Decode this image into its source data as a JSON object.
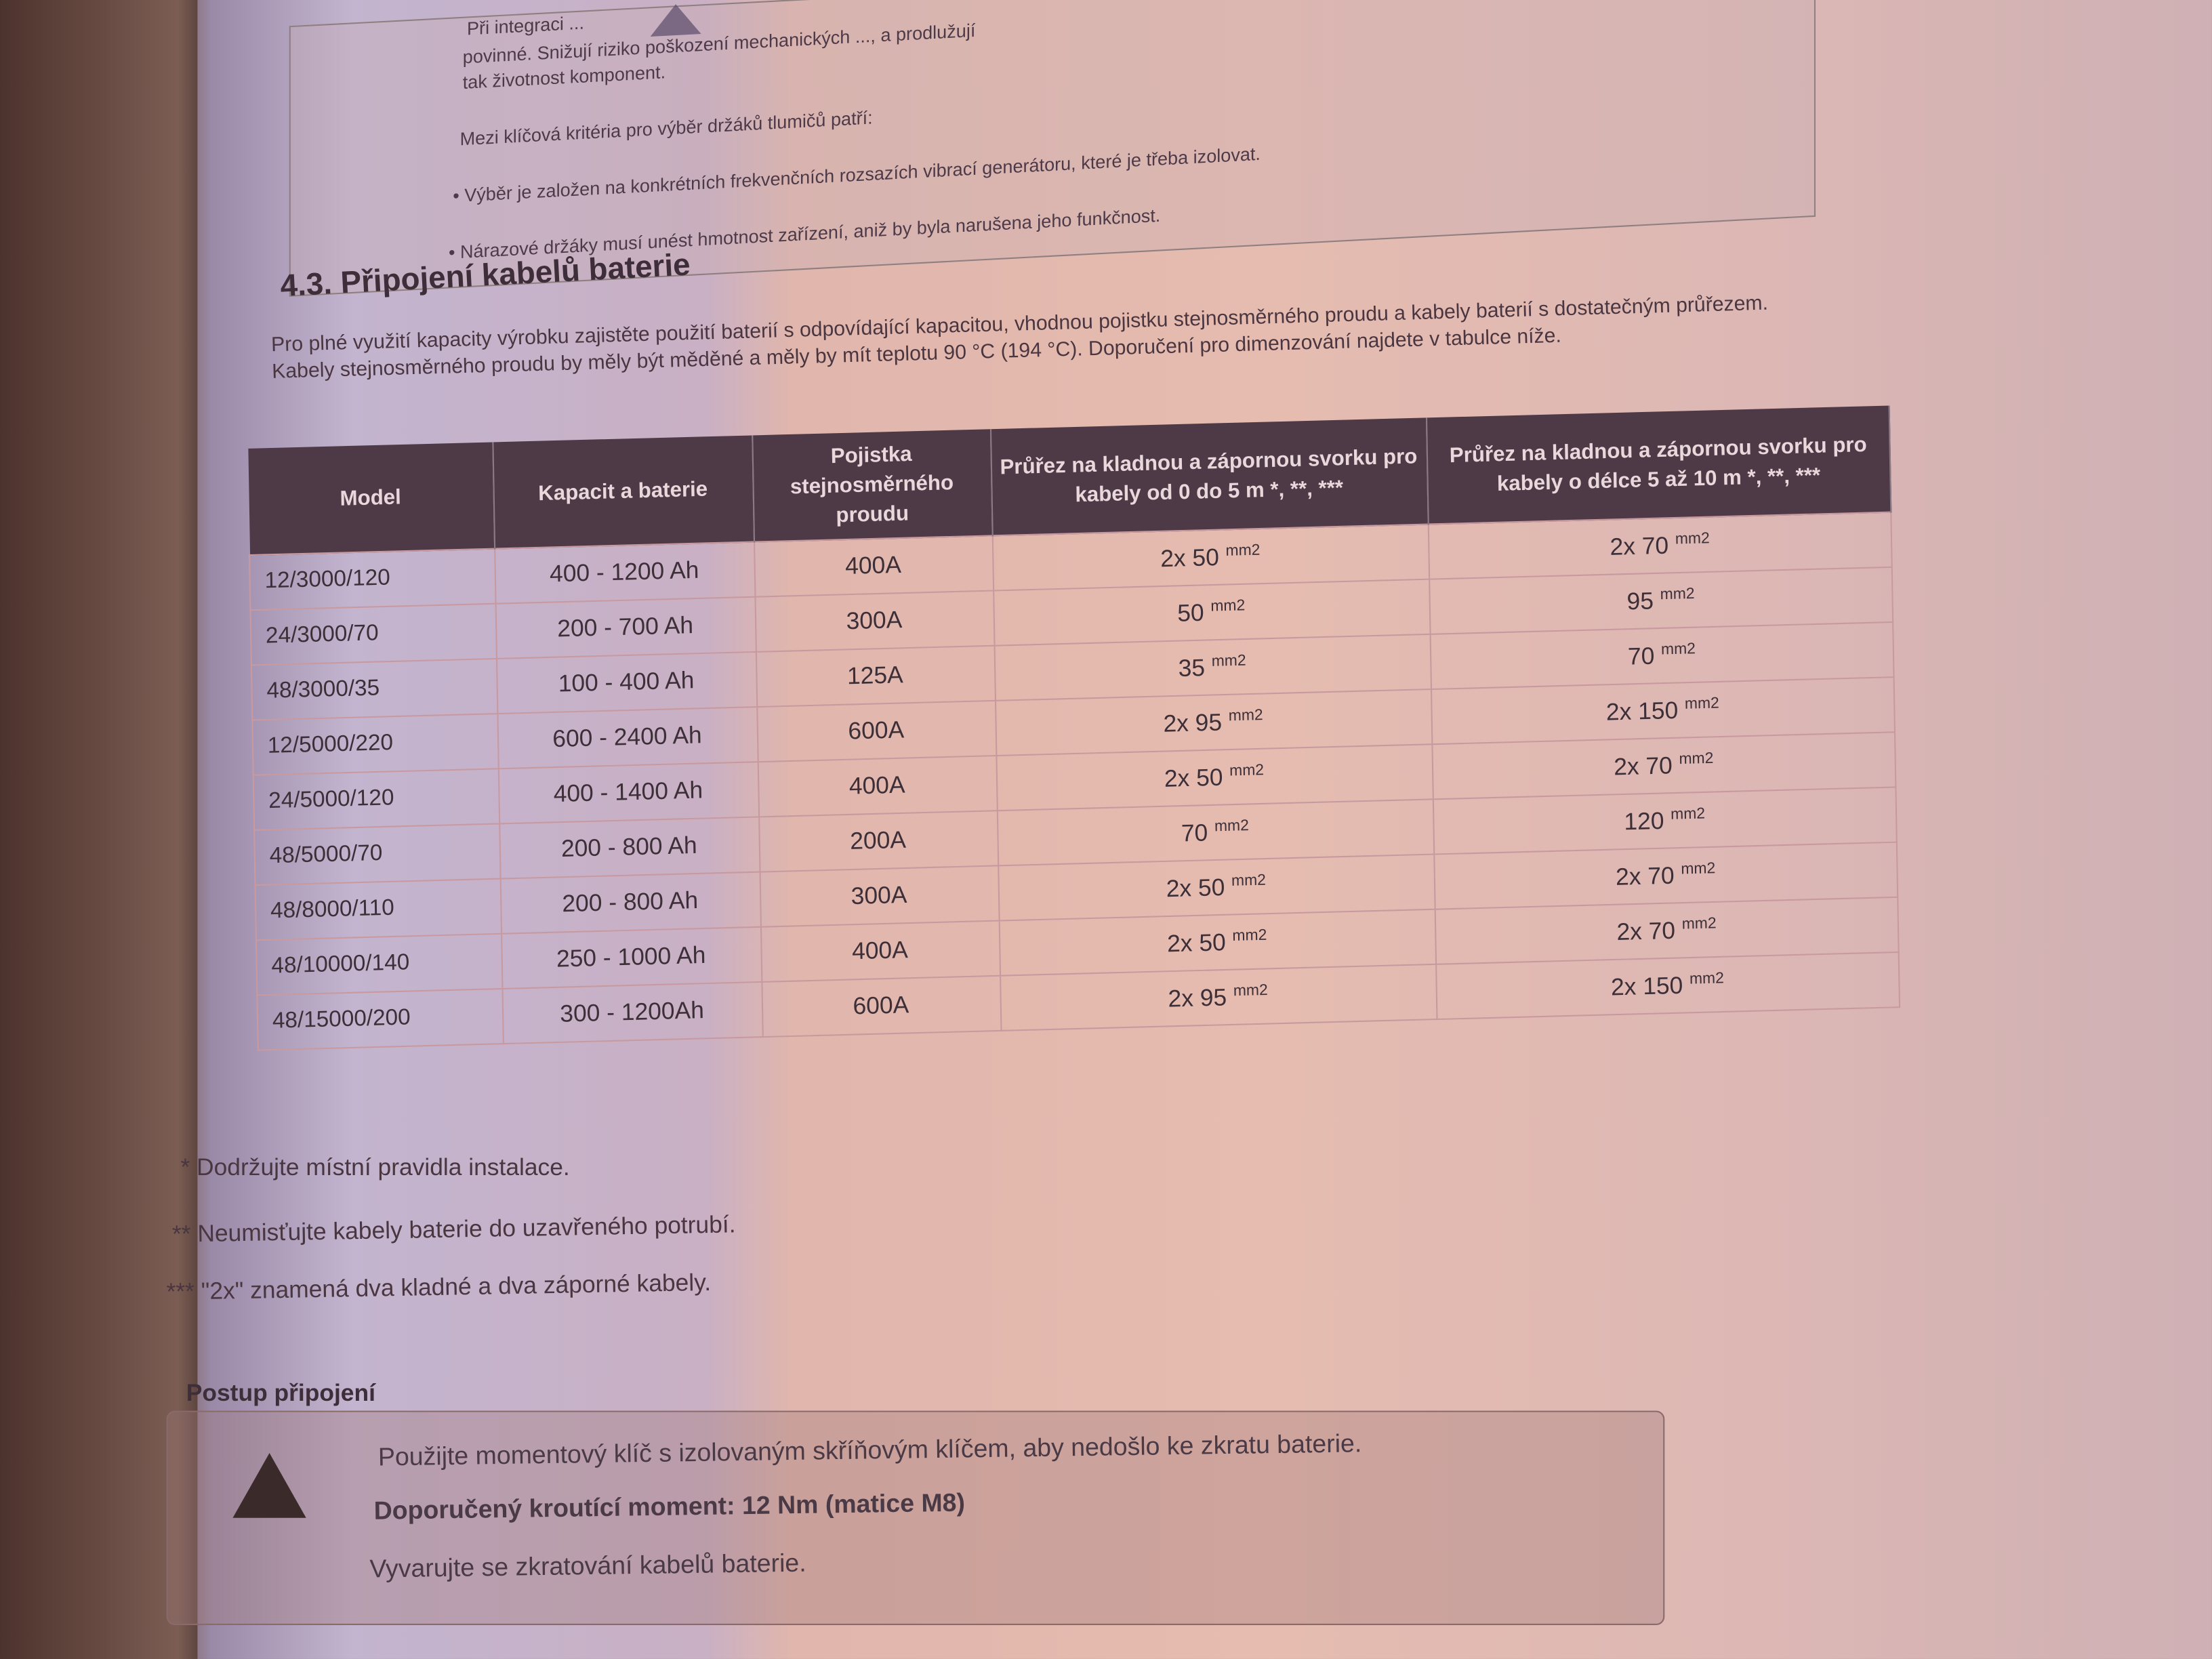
{
  "top_box": {
    "lines": [
      "Při integraci ...",
      "povinné. Snižují riziko poškození mechanických ..., a prodlužují",
      "tak životnost komponent."
    ],
    "criteria_intro": "Mezi klíčová kritéria pro výběr držáků tlumičů patří:",
    "bullets": [
      "Výběr je založen na konkrétních frekvenčních rozsazích vibrací generátoru, které je třeba izolovat.",
      "Nárazové držáky musí unést hmotnost zařízení, aniž by byla narušena jeho funkčnost."
    ]
  },
  "section": {
    "heading": "4.3. Připojení kabelů baterie",
    "paragraph": "Pro plné využití kapacity výrobku zajistěte použití baterií s odpovídající kapacitou, vhodnou pojistku stejnosměrného proudu a kabely baterií s dostatečným průřezem. Kabely stejnosměrného proudu by měly být měděné a měly by mít teplotu 90 °C (194 °C). Doporučení pro dimenzování najdete v tabulce níže."
  },
  "table": {
    "headers": [
      "Model",
      "Kapacit a baterie",
      "Pojistka stejnosměrného proudu",
      "Průřez na kladnou a zápornou svorku pro kabely od 0 do 5 m *, **, ***",
      "Průřez na kladnou a zápornou svorku pro kabely o délce 5 až 10 m *, **, ***"
    ],
    "unit": "mm2",
    "rows": [
      [
        "12/3000/120",
        "400 - 1200 Ah",
        "400A",
        "2x 50",
        "2x 70"
      ],
      [
        "24/3000/70",
        "200 - 700 Ah",
        "300A",
        "50",
        "95"
      ],
      [
        "48/3000/35",
        "100 - 400 Ah",
        "125A",
        "35",
        "70"
      ],
      [
        "12/5000/220",
        "600 - 2400 Ah",
        "600A",
        "2x 95",
        "2x 150"
      ],
      [
        "24/5000/120",
        "400 - 1400 Ah",
        "400A",
        "2x 50",
        "2x 70"
      ],
      [
        "48/5000/70",
        "200 - 800 Ah",
        "200A",
        "70",
        "120"
      ],
      [
        "48/8000/110",
        "200 - 800 Ah",
        "300A",
        "2x 50",
        "2x 70"
      ],
      [
        "48/10000/140",
        "250 - 1000 Ah",
        "400A",
        "2x 50",
        "2x 70"
      ],
      [
        "48/15000/200",
        "300 - 1200Ah",
        "600A",
        "2x 95",
        "2x 150"
      ]
    ]
  },
  "footnotes": [
    "* Dodržujte místní pravidla instalace.",
    "** Neumisťujte kabely baterie do uzavřeného potrubí.",
    "*** \"2x\" znamená dva kladné a dva záporné kabely."
  ],
  "procedure": {
    "title": "Postup připojení",
    "lines": [
      "Použijte momentový klíč s izolovaným skříňovým klíčem, aby nedošlo ke zkratu baterie.",
      "Doporučený kroutící moment: 12 Nm (matice M8)",
      "Vyvarujte se zkratování kabelů baterie."
    ]
  }
}
